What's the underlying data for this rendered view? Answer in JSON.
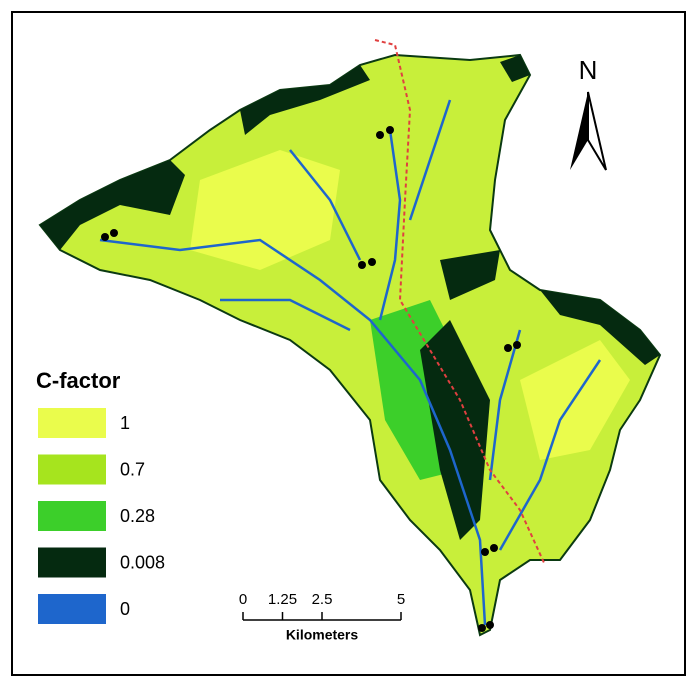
{
  "north_label": "N",
  "legend": {
    "title": "C-factor",
    "items": [
      {
        "label": "1",
        "color": "#eafc4c"
      },
      {
        "label": "0.7",
        "color": "#a6e41e"
      },
      {
        "label": "0.28",
        "color": "#3ccf2a"
      },
      {
        "label": "0.008",
        "color": "#052a10"
      },
      {
        "label": "0",
        "color": "#1e66cc"
      }
    ]
  },
  "scale_bar": {
    "ticks": [
      0,
      1.25,
      2.5,
      5
    ],
    "unit": "Kilometers"
  }
}
